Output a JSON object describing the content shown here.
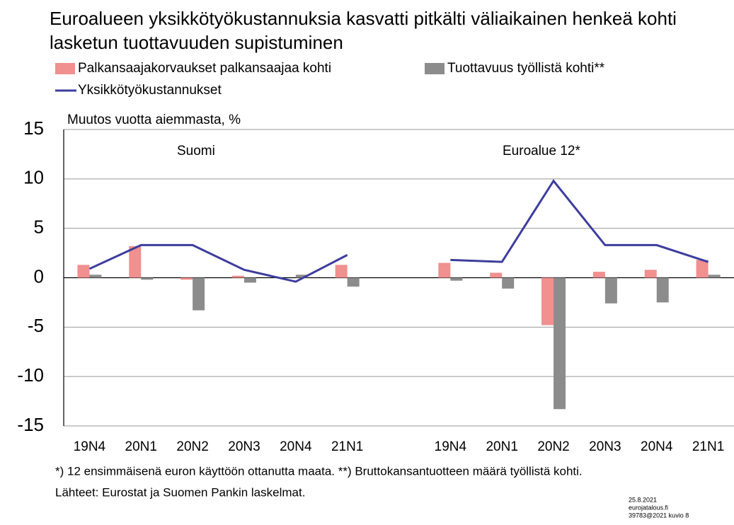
{
  "chart_data": {
    "type": "bar",
    "title": "Euroalueen yksikkötyökustannuksia kasvatti pitkälti väliaikainen henkeä kohti lasketun tuottavuuden supistuminen",
    "y_label": "Muutos vuotta aiemmasta, %",
    "annotations": [
      "Suomi",
      "Euroalue 12*"
    ],
    "footnotes": [
      "*) 12 ensimmäisenä euron käyttöön ottanutta maata. **) Bruttokansantuotteen määrä työllistä kohti.",
      "Lähteet: Eurostat ja Suomen Pankin laskelmat."
    ],
    "stamp": [
      "25.8.2021",
      "eurojatalous.fi",
      "39783@2021 kuvio 8"
    ],
    "categories": [
      "19N4",
      "20N1",
      "20N2",
      "20N3",
      "20N4",
      "21N1",
      null,
      "19N4",
      "20N1",
      "20N2",
      "20N3",
      "20N4",
      "21N1"
    ],
    "series": [
      {
        "name": "Palkansaajakorvaukset palkansaajaa kohti",
        "type": "bar",
        "color": "#f0908f",
        "values": [
          1.3,
          3.2,
          -0.2,
          0.2,
          0,
          1.3,
          null,
          1.5,
          0.5,
          -4.8,
          0.6,
          0.8,
          1.8
        ]
      },
      {
        "name": "Tuottavuus työllistä kohti**",
        "type": "bar",
        "color": "#8c8c8c",
        "values": [
          0.3,
          -0.2,
          -3.3,
          -0.5,
          0.3,
          -0.9,
          null,
          -0.3,
          -1.1,
          -13.3,
          -2.6,
          -2.5,
          0.3
        ]
      },
      {
        "name": "Yksikkötyökustannukset",
        "type": "line",
        "color": "#3d3d9e",
        "values": [
          0.9,
          3.3,
          3.3,
          0.8,
          -0.4,
          2.3,
          null,
          1.8,
          1.6,
          9.8,
          3.3,
          3.3,
          1.6
        ]
      }
    ],
    "ylim": [
      -15,
      15
    ],
    "yticks": [
      -15,
      -10,
      -5,
      0,
      5,
      10,
      15
    ],
    "grid": true
  }
}
